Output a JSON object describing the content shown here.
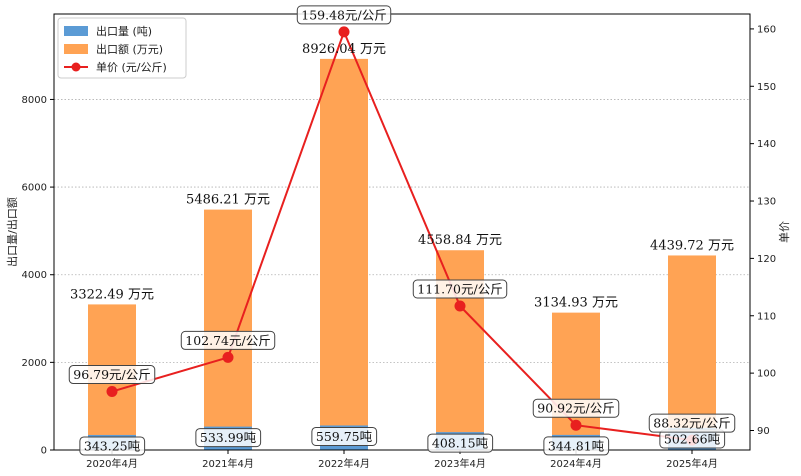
{
  "chart_data": {
    "type": "bar",
    "categories": [
      "2020年4月",
      "2021年4月",
      "2022年4月",
      "2023年4月",
      "2024年4月",
      "2025年4月"
    ],
    "series": [
      {
        "name": "出口量 (吨)",
        "type": "bar",
        "axis": "left",
        "color": "#5b9bd5",
        "values": [
          343.25,
          533.99,
          559.75,
          408.15,
          344.81,
          502.66
        ],
        "labels": [
          "343.25吨",
          "533.99吨",
          "559.75吨",
          "408.15吨",
          "344.81吨",
          "502.66吨"
        ]
      },
      {
        "name": "出口额 (万元)",
        "type": "bar",
        "axis": "left",
        "color": "#ffa354",
        "values": [
          3322.49,
          5486.21,
          8926.04,
          4558.84,
          3134.93,
          4439.72
        ],
        "labels": [
          "3322.49 万元",
          "5486.21 万元",
          "8926.04 万元",
          "4558.84 万元",
          "3134.93 万元",
          "4439.72 万元"
        ]
      },
      {
        "name": "单价 (元/公斤)",
        "type": "line",
        "axis": "right",
        "color": "#e8201f",
        "values": [
          96.79,
          102.74,
          159.48,
          111.7,
          90.92,
          88.32
        ],
        "labels": [
          "96.79元/公斤",
          "102.74元/公斤",
          "159.48元/公斤",
          "111.70元/公斤",
          "90.92元/公斤",
          "88.32元/公斤"
        ]
      }
    ],
    "ylabel": "出口量/出口额",
    "y2label": "单价",
    "ylim": [
      0,
      9950
    ],
    "y2lim": [
      86.6,
      162.6
    ],
    "yticks": [
      0,
      2000,
      4000,
      6000,
      8000
    ],
    "y2ticks": [
      90,
      100,
      110,
      120,
      130,
      140,
      150,
      160
    ],
    "grid": "horizontal dotted",
    "legend": "top-left"
  }
}
